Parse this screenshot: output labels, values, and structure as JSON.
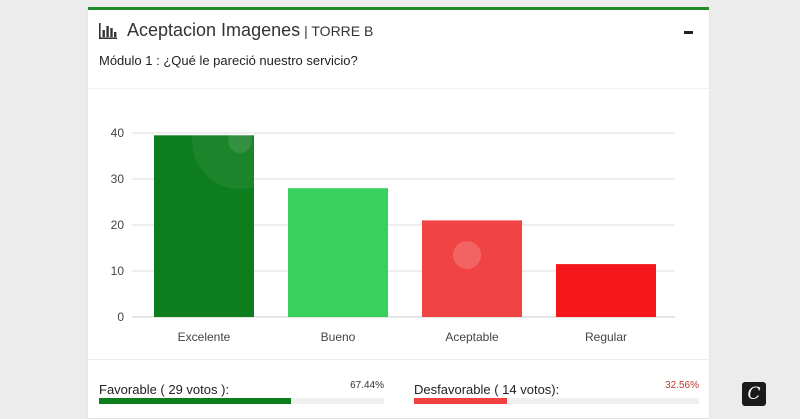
{
  "panel": {
    "title": "Aceptacion Imagenes",
    "subtitle": "| TORRE B",
    "title_icon": "bar-chart-icon",
    "minimize_icon": "minimize-icon",
    "accent_color": "#1f8a2a"
  },
  "question": "Módulo 1 : ¿Qué le pareció nuestro servicio?",
  "chart_data": {
    "type": "bar",
    "categories": [
      "Excelente",
      "Bueno",
      "Aceptable",
      "Regular"
    ],
    "values": [
      39.5,
      28,
      21,
      11.5
    ],
    "colors": [
      "#0e7d1e",
      "#3ad05e",
      "#f04343",
      "#f5171b"
    ],
    "title": "",
    "xlabel": "",
    "ylabel": "",
    "ylim": [
      0,
      40
    ],
    "yticks": [
      0,
      10,
      20,
      30,
      40
    ],
    "grid": true,
    "legend": "none"
  },
  "summary": {
    "favorable": {
      "label": "Favorable ( 29 votos ):",
      "percent_text": "67.44%",
      "percent": 67.44,
      "color": "#0e7d1e"
    },
    "desfavorable": {
      "label": "Desfavorable ( 14 votos):",
      "percent_text": "32.56%",
      "percent": 32.56,
      "color": "#f04040"
    }
  },
  "brand_badge": {
    "glyph": "C",
    "icon": "brand-logo-icon"
  }
}
